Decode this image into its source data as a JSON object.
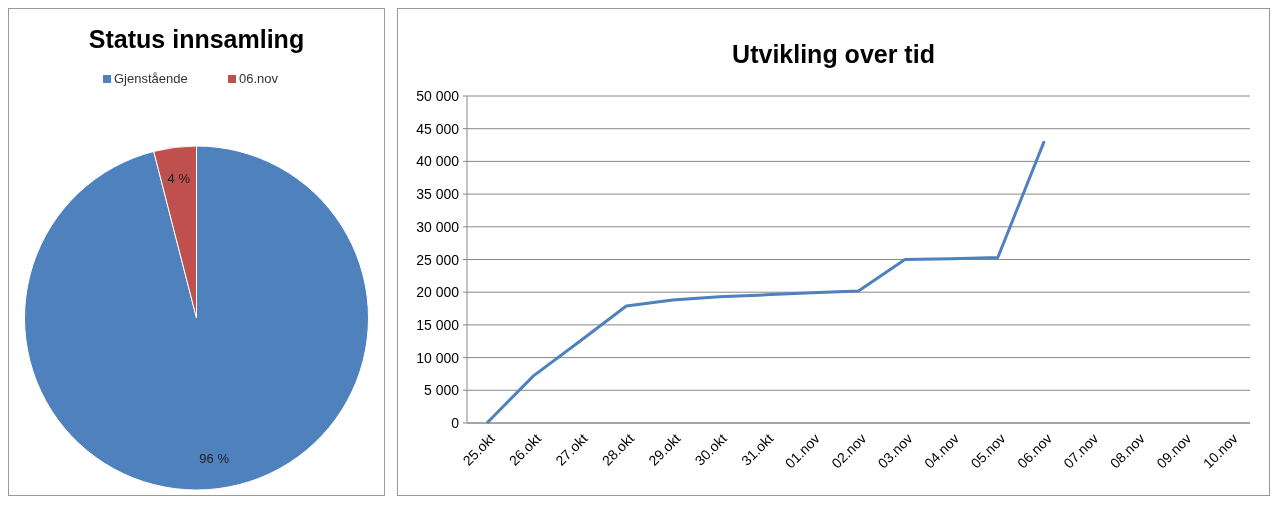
{
  "chart_data": [
    {
      "type": "pie",
      "title": "Status innsamling",
      "categories": [
        "Gjenstående",
        "06.nov"
      ],
      "values": [
        96,
        4
      ],
      "colors": [
        "#4f81bd",
        "#c0504d"
      ],
      "value_labels": [
        "96 %",
        "4 %"
      ],
      "legend": "top"
    },
    {
      "type": "line",
      "title": "Utvikling over tid",
      "categories": [
        "25.okt",
        "26.okt",
        "27.okt",
        "28.okt",
        "29.okt",
        "30.okt",
        "31.okt",
        "01.nov",
        "02.nov",
        "03.nov",
        "04.nov",
        "05.nov",
        "06.nov",
        "07.nov",
        "08.nov",
        "09.nov",
        "10.nov"
      ],
      "series": [
        {
          "color": "#4f81bd",
          "values": [
            0,
            7200,
            12500,
            17900,
            18800,
            19300,
            19600,
            19900,
            20200,
            25000,
            25100,
            25300,
            43100,
            null,
            null,
            null,
            null
          ]
        }
      ],
      "ylim": [
        0,
        50000
      ],
      "yticks": [
        {
          "value": 0,
          "label": "0"
        },
        {
          "value": 5000,
          "label": "5 000"
        },
        {
          "value": 10000,
          "label": "10 000"
        },
        {
          "value": 15000,
          "label": "15 000"
        },
        {
          "value": 20000,
          "label": "20 000"
        },
        {
          "value": 25000,
          "label": "25 000"
        },
        {
          "value": 30000,
          "label": "30 000"
        },
        {
          "value": 35000,
          "label": "35 000"
        },
        {
          "value": 40000,
          "label": "40 000"
        },
        {
          "value": 45000,
          "label": "45 000"
        },
        {
          "value": 50000,
          "label": "50 000"
        }
      ],
      "grid": "y",
      "legend": false,
      "marker": "none",
      "line_style": "solid"
    }
  ]
}
